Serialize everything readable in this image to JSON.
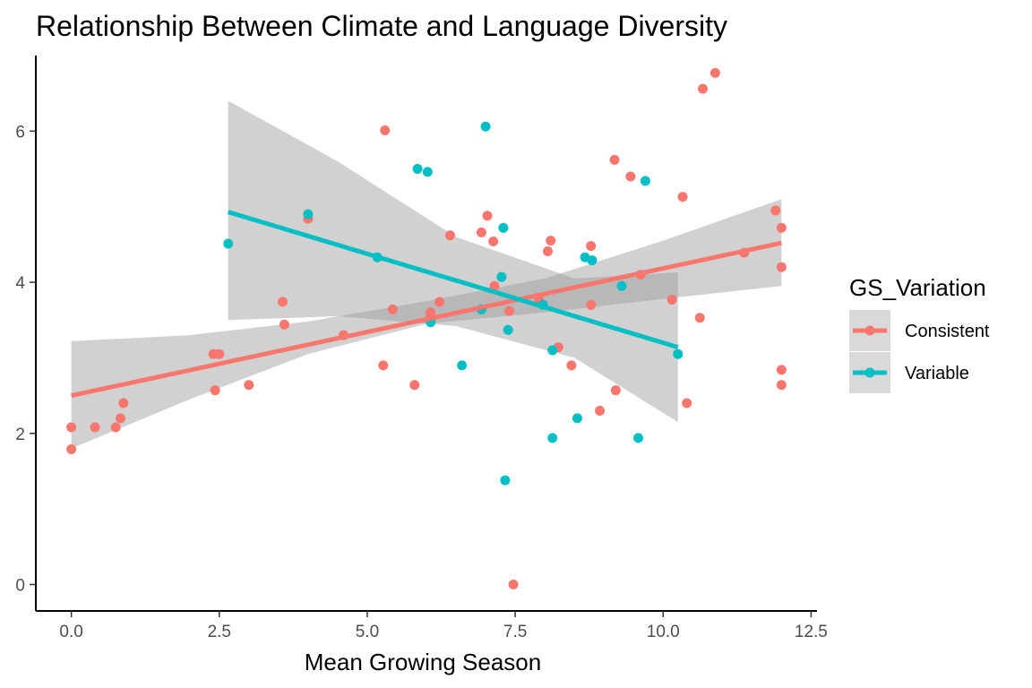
{
  "chart_data": {
    "type": "scatter",
    "title": "Relationship Between Climate and Language Diversity",
    "xlabel": "Mean Growing Season",
    "ylabel": "",
    "xlim": [
      -0.6,
      12.6
    ],
    "ylim": [
      -0.35,
      7.0
    ],
    "x_ticks": [
      0,
      2.5,
      5,
      7.5,
      10,
      12.5
    ],
    "x_tick_labels": [
      "0.0",
      "2.5",
      "5.0",
      "7.5",
      "10.0",
      "12.5"
    ],
    "y_ticks": [
      0,
      2,
      4,
      6
    ],
    "y_tick_labels": [
      "0",
      "2",
      "4",
      "6"
    ],
    "grid": false,
    "legend": {
      "title": "GS_Variation",
      "position": "right",
      "entries": [
        "Consistent",
        "Variable"
      ]
    },
    "series": [
      {
        "name": "Consistent",
        "color": "#F8766D",
        "points": [
          [
            0,
            2.08
          ],
          [
            0,
            1.79
          ],
          [
            0.4,
            2.08
          ],
          [
            0.75,
            2.08
          ],
          [
            0.83,
            2.2
          ],
          [
            0.88,
            2.4
          ],
          [
            2.4,
            3.05
          ],
          [
            2.5,
            3.05
          ],
          [
            2.43,
            2.57
          ],
          [
            3.0,
            2.64
          ],
          [
            3.57,
            3.74
          ],
          [
            3.6,
            3.44
          ],
          [
            4.0,
            4.84
          ],
          [
            4.6,
            3.3
          ],
          [
            5.3,
            6.01
          ],
          [
            5.27,
            2.9
          ],
          [
            5.43,
            3.64
          ],
          [
            5.8,
            2.64
          ],
          [
            6.07,
            3.56
          ],
          [
            6.07,
            3.6
          ],
          [
            6.22,
            3.74
          ],
          [
            6.4,
            4.62
          ],
          [
            6.93,
            4.66
          ],
          [
            7.03,
            4.88
          ],
          [
            7.13,
            4.54
          ],
          [
            7.15,
            3.95
          ],
          [
            7.4,
            3.62
          ],
          [
            7.47,
            0.0
          ],
          [
            7.9,
            3.78
          ],
          [
            8.05,
            4.41
          ],
          [
            8.1,
            4.55
          ],
          [
            8.23,
            3.14
          ],
          [
            8.45,
            2.9
          ],
          [
            8.78,
            4.48
          ],
          [
            8.78,
            3.7
          ],
          [
            8.93,
            2.3
          ],
          [
            9.18,
            5.62
          ],
          [
            9.2,
            2.57
          ],
          [
            9.45,
            5.4
          ],
          [
            9.62,
            4.1
          ],
          [
            10.15,
            3.77
          ],
          [
            10.33,
            5.13
          ],
          [
            10.4,
            2.4
          ],
          [
            10.62,
            3.53
          ],
          [
            10.67,
            6.56
          ],
          [
            10.88,
            6.77
          ],
          [
            11.37,
            4.39
          ],
          [
            11.9,
            4.95
          ],
          [
            12.0,
            4.72
          ],
          [
            12.0,
            4.2
          ],
          [
            12.0,
            2.84
          ],
          [
            12.0,
            2.64
          ]
        ],
        "fit": {
          "x": [
            0,
            12
          ],
          "y": [
            2.5,
            4.52
          ]
        },
        "ci": {
          "x": [
            0,
            2,
            4,
            6,
            8,
            10,
            12
          ],
          "lower": [
            1.8,
            2.45,
            3.05,
            3.45,
            3.6,
            3.78,
            3.95
          ],
          "upper": [
            3.22,
            3.3,
            3.48,
            3.75,
            4.05,
            4.55,
            5.1
          ]
        }
      },
      {
        "name": "Variable",
        "color": "#00BFC4",
        "points": [
          [
            2.65,
            4.51
          ],
          [
            4.0,
            4.9
          ],
          [
            5.17,
            4.33
          ],
          [
            5.85,
            5.5
          ],
          [
            6.02,
            5.46
          ],
          [
            6.07,
            3.47
          ],
          [
            6.6,
            2.9
          ],
          [
            6.93,
            3.64
          ],
          [
            7.0,
            6.06
          ],
          [
            7.27,
            4.07
          ],
          [
            7.3,
            4.72
          ],
          [
            7.33,
            1.38
          ],
          [
            7.38,
            3.37
          ],
          [
            7.97,
            3.7
          ],
          [
            8.13,
            3.1
          ],
          [
            8.13,
            1.94
          ],
          [
            8.55,
            2.2
          ],
          [
            8.68,
            4.33
          ],
          [
            8.8,
            4.29
          ],
          [
            9.3,
            3.95
          ],
          [
            9.58,
            1.94
          ],
          [
            9.7,
            5.34
          ],
          [
            10.25,
            3.05
          ]
        ],
        "fit": {
          "x": [
            2.65,
            10.25
          ],
          "y": [
            4.93,
            3.14
          ]
        },
        "ci": {
          "x": [
            2.65,
            4.5,
            6.5,
            8.5,
            10.25
          ],
          "lower": [
            3.5,
            3.55,
            3.42,
            3.0,
            2.15
          ],
          "upper": [
            6.4,
            5.6,
            4.6,
            4.05,
            4.13
          ]
        }
      }
    ]
  }
}
